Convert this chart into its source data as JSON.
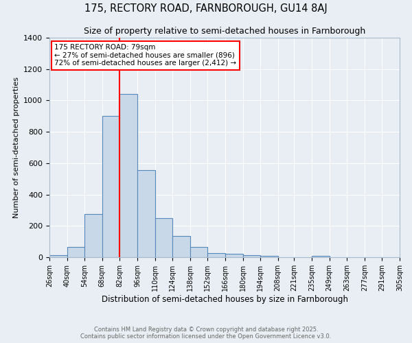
{
  "title1": "175, RECTORY ROAD, FARNBOROUGH, GU14 8AJ",
  "title2": "Size of property relative to semi-detached houses in Farnborough",
  "xlabel": "Distribution of semi-detached houses by size in Farnborough",
  "ylabel": "Number of semi-detached properties",
  "bins": [
    26,
    40,
    54,
    68,
    82,
    96,
    110,
    124,
    138,
    152,
    166,
    180,
    194,
    208,
    221,
    235,
    249,
    263,
    277,
    291,
    305
  ],
  "counts": [
    15,
    65,
    275,
    900,
    1040,
    555,
    250,
    135,
    65,
    28,
    20,
    12,
    10,
    0,
    0,
    8,
    0,
    0,
    0,
    0
  ],
  "bar_color": "#c8d8e8",
  "bar_edge_color": "#5588bb",
  "red_line_x": 82,
  "annotation_title": "175 RECTORY ROAD: 79sqm",
  "annotation_line1": "← 27% of semi-detached houses are smaller (896)",
  "annotation_line2": "72% of semi-detached houses are larger (2,412) →",
  "annotation_box_color": "white",
  "annotation_box_edge_color": "red",
  "footer1": "Contains HM Land Registry data © Crown copyright and database right 2025.",
  "footer2": "Contains public sector information licensed under the Open Government Licence v3.0.",
  "ylim": [
    0,
    1400
  ],
  "background_color": "#e8eef4",
  "title1_fontsize": 10.5,
  "title2_fontsize": 9,
  "xlabel_fontsize": 8.5,
  "ylabel_fontsize": 8,
  "tick_fontsize": 7,
  "annotation_fontsize": 7.5,
  "footer_fontsize": 6
}
